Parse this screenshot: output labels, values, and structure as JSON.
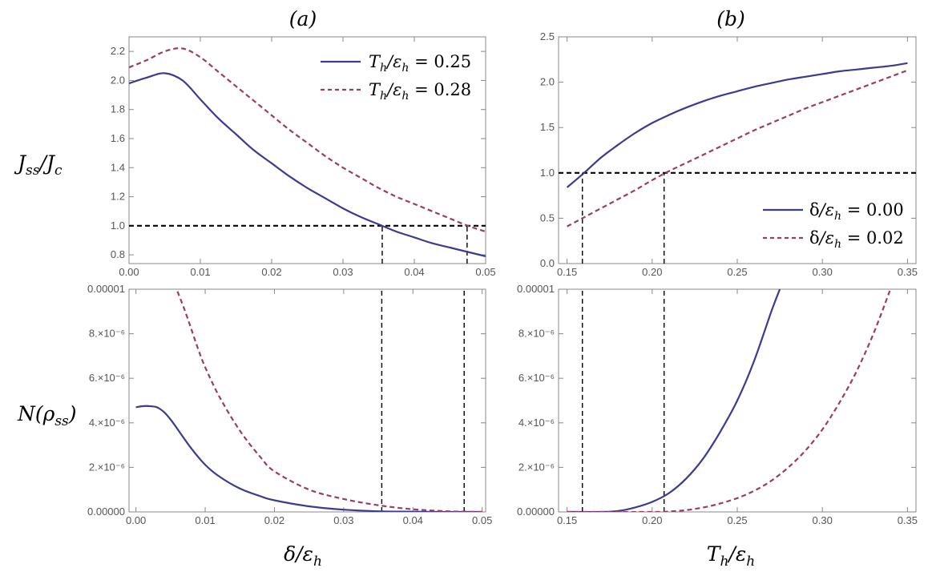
{
  "panel_labels": {
    "a": "(a)",
    "b": "(b)"
  },
  "row_labels": {
    "top": "J_ss/J_c",
    "bottom": "N(ρ_ss)"
  },
  "x_labels": {
    "left": "δ/ε_h",
    "right": "T_h/ε_h"
  },
  "colors": {
    "solid": "#3b3b8f",
    "dashed": "#993d66",
    "reference": "#000000"
  },
  "chart_data": [
    {
      "id": "a-top",
      "type": "line",
      "xlim": [
        0.0,
        0.05
      ],
      "ylim": [
        0.74,
        2.3
      ],
      "x_ticks": [
        0.0,
        0.01,
        0.02,
        0.03,
        0.04,
        0.05
      ],
      "x_tick_labels": [
        "0.00",
        "0.01",
        "0.02",
        "0.03",
        "0.04",
        "0.05"
      ],
      "y_ticks": [
        0.8,
        1.0,
        1.2,
        1.4,
        1.6,
        1.8,
        2.0,
        2.2
      ],
      "y_tick_labels": [
        "0.8",
        "1.0",
        "1.2",
        "1.4",
        "1.6",
        "1.8",
        "2.0",
        "2.2"
      ],
      "ylabel": "J_ss/J_c",
      "legend": [
        "T_h/ε_h = 0.25",
        "T_h/ε_h = 0.28"
      ],
      "legend_position": "top-right",
      "series": [
        {
          "name": "T_h/ε_h = 0.25",
          "style": "solid",
          "x": [
            0.0,
            0.0025,
            0.005,
            0.0075,
            0.01,
            0.0125,
            0.015,
            0.0175,
            0.02,
            0.0225,
            0.025,
            0.0275,
            0.03,
            0.0325,
            0.035,
            0.0375,
            0.04,
            0.0425,
            0.045,
            0.0475,
            0.05
          ],
          "y": [
            1.98,
            2.02,
            2.05,
            2.0,
            1.87,
            1.74,
            1.63,
            1.52,
            1.43,
            1.34,
            1.26,
            1.19,
            1.12,
            1.06,
            1.01,
            0.96,
            0.92,
            0.88,
            0.85,
            0.82,
            0.79
          ]
        },
        {
          "name": "T_h/ε_h = 0.28",
          "style": "dashed",
          "x": [
            0.0,
            0.0025,
            0.005,
            0.0075,
            0.01,
            0.0125,
            0.015,
            0.0175,
            0.02,
            0.0225,
            0.025,
            0.0275,
            0.03,
            0.0325,
            0.035,
            0.0375,
            0.04,
            0.0425,
            0.045,
            0.0475,
            0.05
          ],
          "y": [
            2.09,
            2.14,
            2.2,
            2.22,
            2.16,
            2.06,
            1.96,
            1.86,
            1.76,
            1.66,
            1.57,
            1.48,
            1.4,
            1.33,
            1.26,
            1.2,
            1.15,
            1.1,
            1.05,
            1.0,
            0.96
          ]
        }
      ],
      "h_ref": [
        {
          "y": 1.0,
          "x_from": 0.0,
          "x_to": 0.05
        }
      ],
      "v_ref": [
        {
          "x": 0.0355,
          "y_from": 0.74,
          "y_to": 1.0
        },
        {
          "x": 0.0474,
          "y_from": 0.74,
          "y_to": 1.0
        }
      ]
    },
    {
      "id": "b-top",
      "type": "line",
      "xlim": [
        0.145,
        0.355
      ],
      "ylim": [
        0.0,
        2.5
      ],
      "x_ticks": [
        0.15,
        0.2,
        0.25,
        0.3,
        0.35
      ],
      "x_tick_labels": [
        "0.15",
        "0.20",
        "0.25",
        "0.30",
        "0.35"
      ],
      "y_ticks": [
        0.0,
        0.5,
        1.0,
        1.5,
        2.0,
        2.5
      ],
      "y_tick_labels": [
        "0.0",
        "0.5",
        "1.0",
        "1.5",
        "2.0",
        "2.5"
      ],
      "legend": [
        "δ/ε_h = 0.00",
        "δ/ε_h = 0.02"
      ],
      "legend_position": "bottom-right",
      "series": [
        {
          "name": "δ/ε_h = 0.00",
          "style": "solid",
          "x": [
            0.15,
            0.16,
            0.17,
            0.18,
            0.19,
            0.2,
            0.21,
            0.22,
            0.23,
            0.24,
            0.25,
            0.26,
            0.27,
            0.28,
            0.29,
            0.3,
            0.31,
            0.32,
            0.33,
            0.34,
            0.35
          ],
          "y": [
            0.84,
            1.0,
            1.17,
            1.31,
            1.44,
            1.55,
            1.64,
            1.72,
            1.79,
            1.85,
            1.9,
            1.95,
            1.99,
            2.03,
            2.06,
            2.09,
            2.12,
            2.14,
            2.16,
            2.18,
            2.21
          ]
        },
        {
          "name": "δ/ε_h = 0.02",
          "style": "dashed",
          "x": [
            0.15,
            0.16,
            0.17,
            0.18,
            0.19,
            0.2,
            0.21,
            0.22,
            0.23,
            0.24,
            0.25,
            0.26,
            0.27,
            0.28,
            0.29,
            0.3,
            0.31,
            0.32,
            0.33,
            0.34,
            0.35
          ],
          "y": [
            0.41,
            0.51,
            0.61,
            0.71,
            0.81,
            0.92,
            1.02,
            1.11,
            1.2,
            1.29,
            1.38,
            1.47,
            1.55,
            1.63,
            1.71,
            1.78,
            1.85,
            1.92,
            1.99,
            2.06,
            2.13
          ]
        }
      ],
      "h_ref": [
        {
          "y": 1.0,
          "x_from": 0.145,
          "x_to": 0.355
        }
      ],
      "v_ref": [
        {
          "x": 0.159,
          "y_from": 0.0,
          "y_to": 1.0
        },
        {
          "x": 0.207,
          "y_from": 0.0,
          "y_to": 1.0
        }
      ]
    },
    {
      "id": "a-bottom",
      "type": "line",
      "xlim": [
        -0.001,
        0.0505
      ],
      "ylim": [
        0.0,
        1e-05
      ],
      "x_ticks": [
        0.0,
        0.01,
        0.02,
        0.03,
        0.04,
        0.05
      ],
      "x_tick_labels": [
        "0.00",
        "0.01",
        "0.02",
        "0.03",
        "0.04",
        "0.05"
      ],
      "y_ticks": [
        0.0,
        2e-06,
        4e-06,
        6e-06,
        8e-06,
        1e-05
      ],
      "y_tick_labels": [
        "0.00000",
        "2.×10⁻⁶",
        "4.×10⁻⁶",
        "6.×10⁻⁶",
        "8.×10⁻⁶",
        "0.00001"
      ],
      "ylabel": "N(ρ_ss)",
      "xlabel": "δ/ε_h",
      "series": [
        {
          "name": "T_h/ε_h = 0.25",
          "style": "solid",
          "x": [
            0.0,
            0.001,
            0.002,
            0.003,
            0.004,
            0.005,
            0.006,
            0.008,
            0.01,
            0.012,
            0.015,
            0.018,
            0.02,
            0.025,
            0.03,
            0.035,
            0.04,
            0.045,
            0.05
          ],
          "y": [
            4.7e-06,
            4.75e-06,
            4.75e-06,
            4.7e-06,
            4.5e-06,
            4.15e-06,
            3.72e-06,
            2.85e-06,
            2.12e-06,
            1.6e-06,
            1.05e-06,
            7e-07,
            5.2e-07,
            2.5e-07,
            1e-07,
            3e-08,
            1e-08,
            0.0,
            0.0
          ]
        },
        {
          "name": "T_h/ε_h = 0.28",
          "style": "dashed",
          "x": [
            0.006,
            0.007,
            0.008,
            0.009,
            0.01,
            0.012,
            0.015,
            0.018,
            0.02,
            0.025,
            0.03,
            0.035,
            0.04,
            0.045,
            0.05
          ],
          "y": [
            9.9e-06,
            9.1e-06,
            8.2e-06,
            7.3e-06,
            6.5e-06,
            5.2e-06,
            3.65e-06,
            2.45e-06,
            1.82e-06,
            1e-06,
            5.8e-07,
            3e-07,
            1.2e-07,
            3e-08,
            0.0
          ]
        }
      ],
      "v_ref": [
        {
          "x": 0.0355,
          "y_from": 0.0,
          "y_to": 1e-05
        },
        {
          "x": 0.0474,
          "y_from": 0.0,
          "y_to": 1e-05
        }
      ]
    },
    {
      "id": "b-bottom",
      "type": "line",
      "xlim": [
        0.145,
        0.355
      ],
      "ylim": [
        0.0,
        1e-05
      ],
      "x_ticks": [
        0.15,
        0.2,
        0.25,
        0.3,
        0.35
      ],
      "x_tick_labels": [
        "0.15",
        "0.20",
        "0.25",
        "0.30",
        "0.35"
      ],
      "y_ticks": [
        0.0,
        2e-06,
        4e-06,
        6e-06,
        8e-06,
        1e-05
      ],
      "y_tick_labels": [
        "0.00000",
        "2.×10⁻⁶",
        "4.×10⁻⁶",
        "6.×10⁻⁶",
        "8.×10⁻⁶",
        "0.00001"
      ],
      "xlabel": "T_h/ε_h",
      "series": [
        {
          "name": "δ/ε_h = 0.00",
          "style": "solid",
          "x": [
            0.15,
            0.17,
            0.18,
            0.19,
            0.2,
            0.21,
            0.22,
            0.23,
            0.24,
            0.25,
            0.26,
            0.27,
            0.275
          ],
          "y": [
            0.0,
            0.0,
            4e-08,
            2e-07,
            4.5e-07,
            8.5e-07,
            1.5e-06,
            2.4e-06,
            3.6e-06,
            5e-06,
            6.8e-06,
            9e-06,
            1e-05
          ]
        },
        {
          "name": "δ/ε_h = 0.02",
          "style": "dashed",
          "x": [
            0.15,
            0.2,
            0.21,
            0.22,
            0.23,
            0.24,
            0.25,
            0.26,
            0.27,
            0.28,
            0.29,
            0.3,
            0.31,
            0.32,
            0.33,
            0.34
          ],
          "y": [
            0.0,
            0.0,
            2e-08,
            8e-08,
            2e-07,
            3.8e-07,
            6.2e-07,
            9.5e-07,
            1.4e-06,
            2e-06,
            2.75e-06,
            3.7e-06,
            4.9e-06,
            6.3e-06,
            8e-06,
            1e-05
          ]
        }
      ],
      "v_ref": [
        {
          "x": 0.159,
          "y_from": 0.0,
          "y_to": 1e-05
        },
        {
          "x": 0.207,
          "y_from": 0.0,
          "y_to": 1e-05
        }
      ]
    }
  ]
}
